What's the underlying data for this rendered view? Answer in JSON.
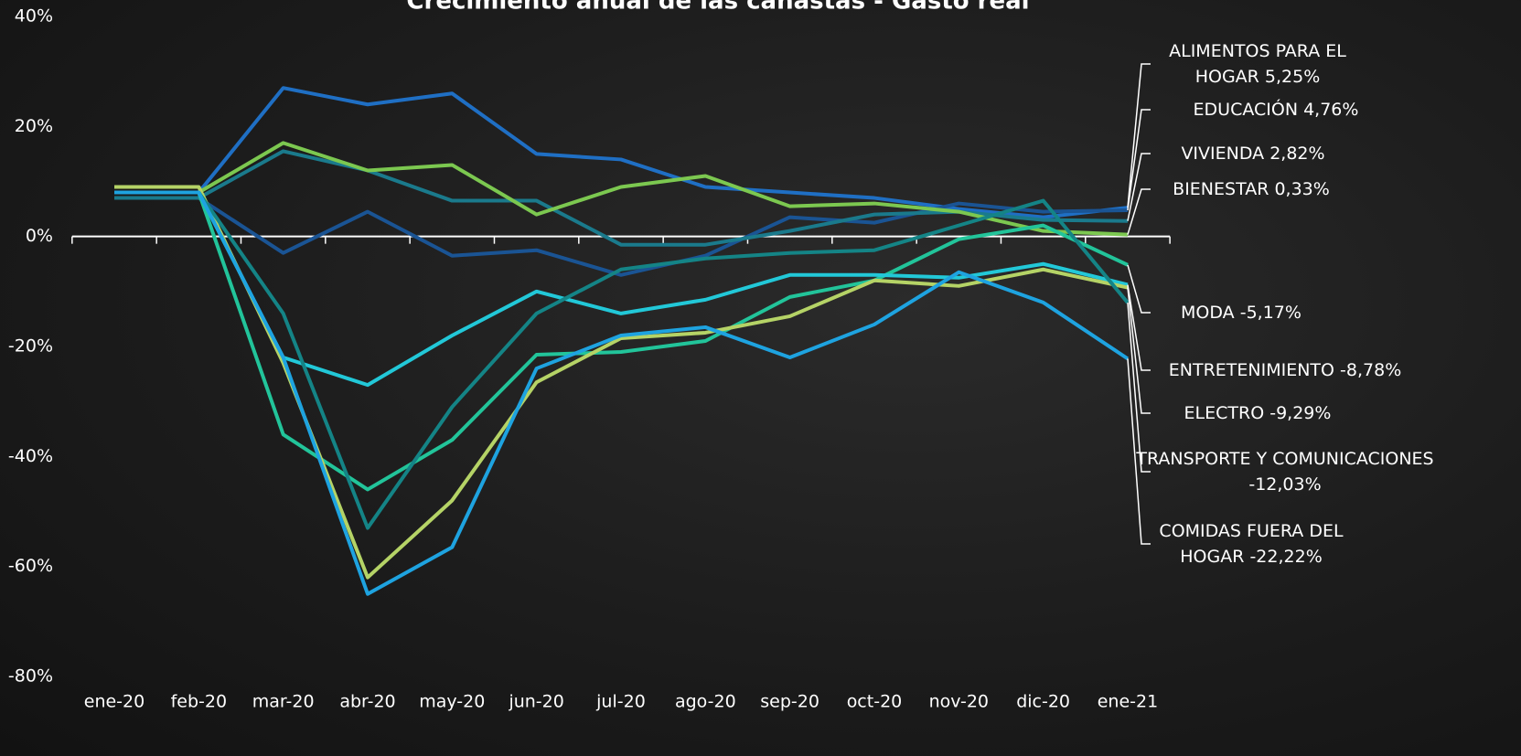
{
  "chart_data": {
    "type": "line",
    "title": "Crecimiento anual de las canastas - Gasto real",
    "categories": [
      "ene-20",
      "feb-20",
      "mar-20",
      "abr-20",
      "may-20",
      "jun-20",
      "jul-20",
      "ago-20",
      "sep-20",
      "oct-20",
      "nov-20",
      "dic-20",
      "ene-21"
    ],
    "ylim": [
      -80,
      40
    ],
    "yticks": [
      {
        "value": -80,
        "label": "-80%"
      },
      {
        "value": -60,
        "label": "-60%"
      },
      {
        "value": -40,
        "label": "-40%"
      },
      {
        "value": -20,
        "label": "-20%"
      },
      {
        "value": 0,
        "label": "0%"
      },
      {
        "value": 20,
        "label": "20%"
      },
      {
        "value": 40,
        "label": "40%"
      }
    ],
    "series": [
      {
        "name": "ALIMENTOS PARA EL HOGAR",
        "color": "#1f6fc4",
        "values": [
          8,
          8,
          27,
          24,
          26,
          15,
          14,
          9,
          8,
          7,
          5,
          3.5,
          5.25
        ],
        "value_labels": [
          null,
          null,
          null,
          null,
          null,
          null,
          null,
          null,
          null,
          null,
          null,
          null,
          "5,25%"
        ]
      },
      {
        "name": "EDUCACIÓN",
        "color": "#1a5494",
        "values": [
          7,
          7,
          -3,
          4.5,
          -3.5,
          -2.5,
          -7,
          -3.5,
          3.5,
          2.5,
          6,
          4.5,
          4.76
        ],
        "value_labels": [
          null,
          null,
          null,
          null,
          null,
          null,
          null,
          null,
          null,
          null,
          null,
          null,
          "4,76%"
        ]
      },
      {
        "name": "VIVIENDA",
        "color": "#1a7a8c",
        "values": [
          7,
          7,
          15.5,
          12,
          6.5,
          6.5,
          -1.5,
          -1.5,
          1,
          4,
          4.5,
          3,
          2.82
        ],
        "value_labels": [
          null,
          null,
          null,
          null,
          null,
          null,
          null,
          null,
          null,
          null,
          null,
          null,
          "2,82%"
        ]
      },
      {
        "name": "BIENESTAR",
        "color": "#7cc850",
        "values": [
          8,
          8,
          17,
          12,
          13,
          4,
          9,
          11,
          5.5,
          6,
          4.5,
          1,
          0.33
        ],
        "value_labels": [
          null,
          null,
          null,
          null,
          null,
          null,
          null,
          null,
          null,
          null,
          null,
          null,
          "0,33%"
        ]
      },
      {
        "name": "MODA",
        "color": "#22c49a",
        "values": [
          8,
          8,
          -36,
          -46,
          -37,
          -21.5,
          -21,
          -19,
          -11,
          -8,
          -0.5,
          2,
          -5.17
        ],
        "value_labels": [
          null,
          null,
          null,
          null,
          null,
          null,
          null,
          null,
          null,
          null,
          null,
          null,
          "-5,17%"
        ]
      },
      {
        "name": "ENTRETENIMIENTO",
        "color": "#22c8d8",
        "values": [
          8,
          8,
          -22,
          -27,
          -18,
          -10,
          -14,
          -11.5,
          -7,
          -7,
          -7.5,
          -5,
          -8.78
        ],
        "value_labels": [
          null,
          null,
          null,
          null,
          null,
          null,
          null,
          null,
          null,
          null,
          null,
          null,
          "-8,78%"
        ]
      },
      {
        "name": "ELECTRO",
        "color": "#b5d366",
        "values": [
          9,
          9,
          -23,
          -62,
          -48,
          -26.5,
          -18.5,
          -17.5,
          -14.5,
          -8,
          -9,
          -6,
          -9.29
        ],
        "value_labels": [
          null,
          null,
          null,
          null,
          null,
          null,
          null,
          null,
          null,
          null,
          null,
          null,
          "-9,29%"
        ]
      },
      {
        "name": "TRANSPORTE Y COMUNICACIONES",
        "color": "#148486",
        "values": [
          8,
          8,
          -14,
          -53,
          -31,
          -14,
          -6,
          -4,
          -3,
          -2.5,
          2,
          6.5,
          -12.03
        ],
        "value_labels": [
          null,
          null,
          null,
          null,
          null,
          null,
          null,
          null,
          null,
          null,
          null,
          null,
          "-12,03%"
        ]
      },
      {
        "name": "COMIDAS FUERA DEL HOGAR",
        "color": "#1ea3e0",
        "values": [
          8,
          8,
          -22,
          -65,
          -56.5,
          -24,
          -18,
          -16.5,
          -22,
          -16,
          -6.5,
          -12,
          -22.22
        ],
        "value_labels": [
          null,
          null,
          null,
          null,
          null,
          null,
          null,
          null,
          null,
          null,
          null,
          null,
          "-22,22%"
        ]
      }
    ]
  }
}
